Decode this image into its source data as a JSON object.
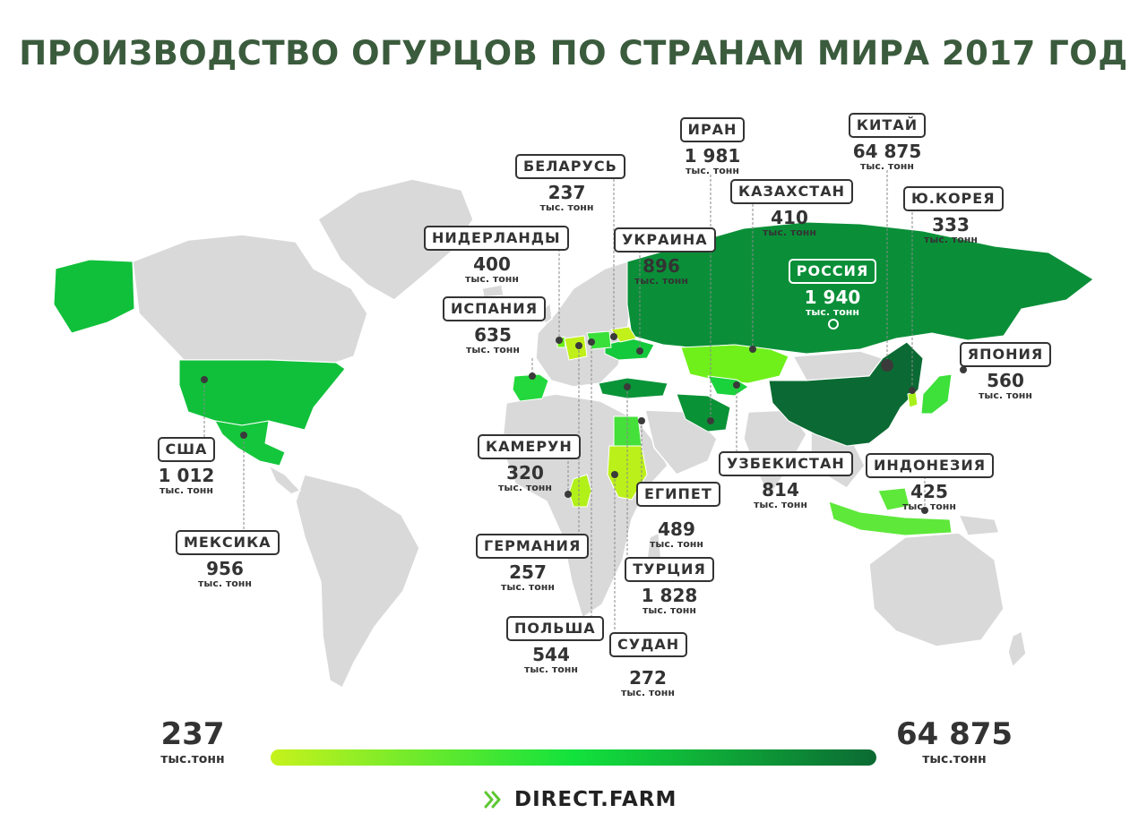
{
  "title": "ПРОИЗВОДСТВО ОГУРЦОВ ПО СТРАНАМ МИРА 2017 ГОД",
  "unit": "тыс. тонн",
  "countries": [
    {
      "name": "БЕЛАРУСЬ",
      "value": "237",
      "fill": "#c2f01a"
    },
    {
      "name": "ИРАН",
      "value": "1 981",
      "fill": "#0a9236"
    },
    {
      "name": "КИТАЙ",
      "value": "64 875",
      "fill": "#0b6a33"
    },
    {
      "name": "КАЗАХСТАН",
      "value": "410",
      "fill": "#6ff01a"
    },
    {
      "name": "Ю.КОРЕЯ",
      "value": "333",
      "fill": "#a8f01a"
    },
    {
      "name": "НИДЕРЛАНДЫ",
      "value": "400",
      "fill": "#6ff01a"
    },
    {
      "name": "УКРАИНА",
      "value": "896",
      "fill": "#15c93c"
    },
    {
      "name": "РОССИЯ",
      "value": "1 940",
      "fill": "#0a8f38"
    },
    {
      "name": "ИСПАНИЯ",
      "value": "635",
      "fill": "#22d83c"
    },
    {
      "name": "ЯПОНИЯ",
      "value": "560",
      "fill": "#3ee03a"
    },
    {
      "name": "США",
      "value": "1 012",
      "fill": "#10c03a"
    },
    {
      "name": "КАМЕРУН",
      "value": "320",
      "fill": "#b2f01a"
    },
    {
      "name": "УЗБЕКИСТАН",
      "value": "814",
      "fill": "#1ad23c"
    },
    {
      "name": "ИНДОНЕЗИЯ",
      "value": "425",
      "fill": "#5ee83a"
    },
    {
      "name": "ЕГИПЕТ",
      "value": "489",
      "fill": "#45e03a"
    },
    {
      "name": "МЕКСИКА",
      "value": "956",
      "fill": "#14c63c"
    },
    {
      "name": "ГЕРМАНИЯ",
      "value": "257",
      "fill": "#c0f01a"
    },
    {
      "name": "ТУРЦИЯ",
      "value": "1 828",
      "fill": "#0a9438"
    },
    {
      "name": "ПОЛЬША",
      "value": "544",
      "fill": "#3ae03a"
    },
    {
      "name": "СУДАН",
      "value": "272",
      "fill": "#bcf01a"
    }
  ],
  "legend": {
    "min_value": "237",
    "max_value": "64 875",
    "unit": "тыс.тонн",
    "color_min": "#c6f21c",
    "color_mid": "#12e23c",
    "color_max": "#0b6a33"
  },
  "brand": {
    "name": "DIRECT.FARM",
    "icon": "chevron-arrows-icon",
    "color": "#5ec733"
  }
}
